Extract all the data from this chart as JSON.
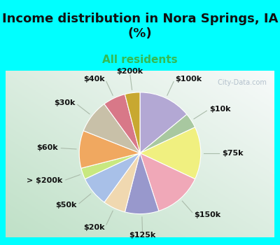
{
  "title": "Income distribution in Nora Springs, IA\n(%)",
  "subtitle": "All residents",
  "labels": [
    "$100k",
    "$10k",
    "$75k",
    "$150k",
    "$125k",
    "$20k",
    "$50k",
    "> $200k",
    "$60k",
    "$30k",
    "$40k",
    "$200k"
  ],
  "values": [
    14,
    4,
    14,
    13,
    9,
    6,
    8,
    3,
    10,
    9,
    6,
    4
  ],
  "colors": [
    "#b3a8d4",
    "#a8c8a0",
    "#f0f080",
    "#f0a8b8",
    "#9898cc",
    "#f0d8b0",
    "#a8c0e8",
    "#c8e880",
    "#f0a860",
    "#c8c0a8",
    "#d87888",
    "#c8a830"
  ],
  "title_fontsize": 13,
  "subtitle_fontsize": 11,
  "label_fontsize": 8,
  "title_color": "#111111",
  "subtitle_color": "#33bb55",
  "watermark": " City-Data.com",
  "cyan_color": "#00FFFF",
  "chart_bg_top": "#f0f8f0",
  "chart_bg_bottom": "#c0e8c8"
}
